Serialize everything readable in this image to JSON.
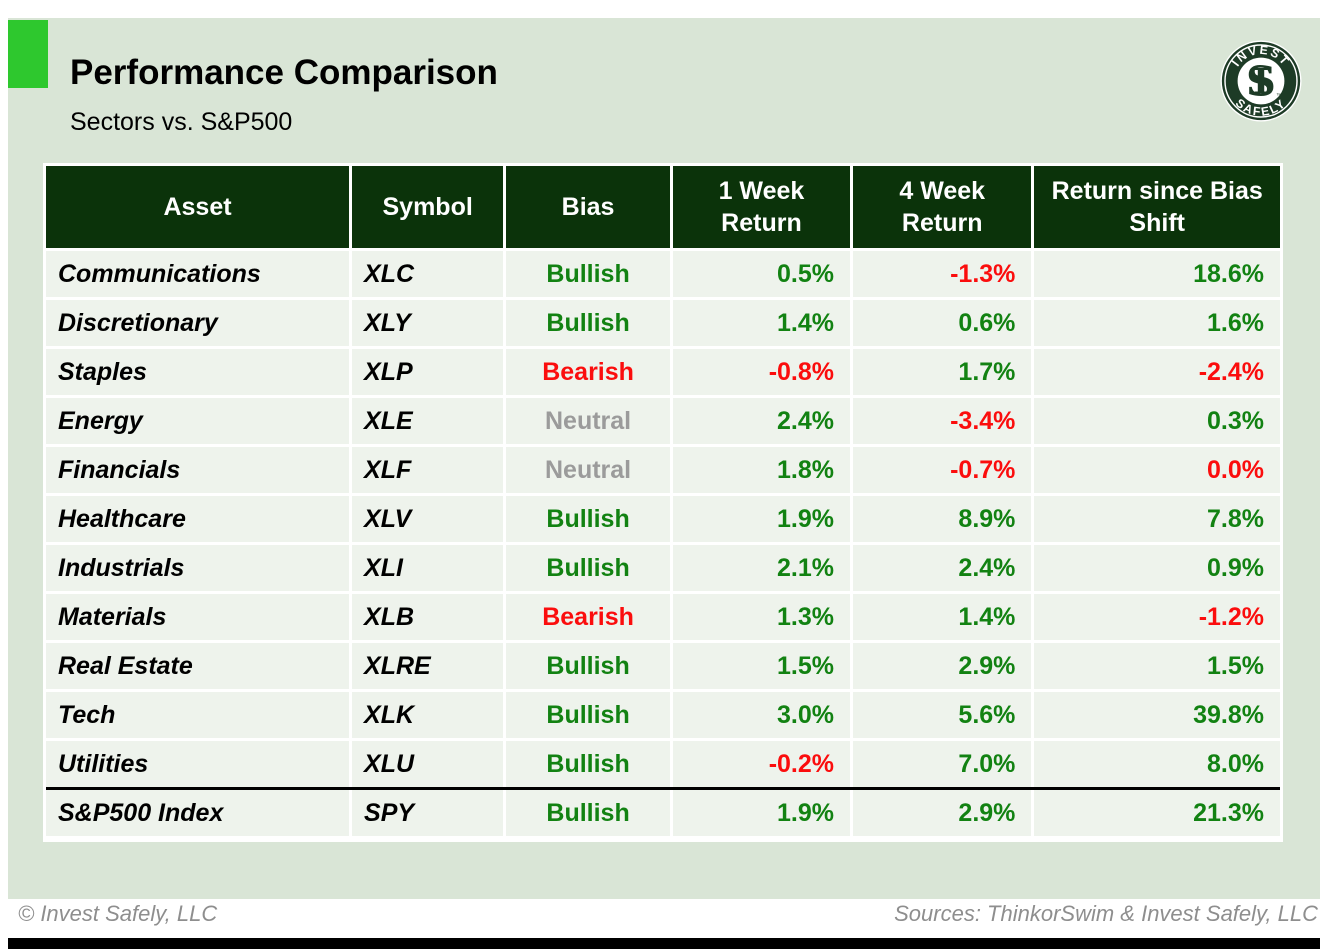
{
  "header": {
    "title": "Performance Comparison",
    "subtitle": "Sectors vs. S&P500"
  },
  "logo": {
    "top_text": "INVEST",
    "bottom_text": "SAFELY",
    "monogram_s": "S",
    "monogram_i": "I",
    "trademark": "™"
  },
  "table": {
    "columns": [
      "Asset",
      "Symbol",
      "Bias",
      "1 Week Return",
      "4 Week Return",
      "Return since Bias Shift"
    ],
    "rows": [
      {
        "asset": "Communications",
        "symbol": "XLC",
        "bias": {
          "text": "Bullish",
          "color": "positive"
        },
        "week1": {
          "text": "0.5%",
          "color": "positive"
        },
        "week4": {
          "text": "-1.3%",
          "color": "negative"
        },
        "since": {
          "text": "18.6%",
          "color": "positive"
        }
      },
      {
        "asset": "Discretionary",
        "symbol": "XLY",
        "bias": {
          "text": "Bullish",
          "color": "positive"
        },
        "week1": {
          "text": "1.4%",
          "color": "positive"
        },
        "week4": {
          "text": "0.6%",
          "color": "positive"
        },
        "since": {
          "text": "1.6%",
          "color": "positive"
        }
      },
      {
        "asset": "Staples",
        "symbol": "XLP",
        "bias": {
          "text": "Bearish",
          "color": "negative"
        },
        "week1": {
          "text": "-0.8%",
          "color": "negative"
        },
        "week4": {
          "text": "1.7%",
          "color": "positive"
        },
        "since": {
          "text": "-2.4%",
          "color": "negative"
        }
      },
      {
        "asset": "Energy",
        "symbol": "XLE",
        "bias": {
          "text": "Neutral",
          "color": "neutral"
        },
        "week1": {
          "text": "2.4%",
          "color": "positive"
        },
        "week4": {
          "text": "-3.4%",
          "color": "negative"
        },
        "since": {
          "text": "0.3%",
          "color": "positive"
        }
      },
      {
        "asset": "Financials",
        "symbol": "XLF",
        "bias": {
          "text": "Neutral",
          "color": "neutral"
        },
        "week1": {
          "text": "1.8%",
          "color": "positive"
        },
        "week4": {
          "text": "-0.7%",
          "color": "negative"
        },
        "since": {
          "text": "0.0%",
          "color": "negative"
        }
      },
      {
        "asset": "Healthcare",
        "symbol": "XLV",
        "bias": {
          "text": "Bullish",
          "color": "positive"
        },
        "week1": {
          "text": "1.9%",
          "color": "positive"
        },
        "week4": {
          "text": "8.9%",
          "color": "positive"
        },
        "since": {
          "text": "7.8%",
          "color": "positive"
        }
      },
      {
        "asset": "Industrials",
        "symbol": "XLI",
        "bias": {
          "text": "Bullish",
          "color": "positive"
        },
        "week1": {
          "text": "2.1%",
          "color": "positive"
        },
        "week4": {
          "text": "2.4%",
          "color": "positive"
        },
        "since": {
          "text": "0.9%",
          "color": "positive"
        }
      },
      {
        "asset": "Materials",
        "symbol": "XLB",
        "bias": {
          "text": "Bearish",
          "color": "negative"
        },
        "week1": {
          "text": "1.3%",
          "color": "positive"
        },
        "week4": {
          "text": "1.4%",
          "color": "positive"
        },
        "since": {
          "text": "-1.2%",
          "color": "negative"
        }
      },
      {
        "asset": "Real Estate",
        "symbol": "XLRE",
        "bias": {
          "text": "Bullish",
          "color": "positive"
        },
        "week1": {
          "text": "1.5%",
          "color": "positive"
        },
        "week4": {
          "text": "2.9%",
          "color": "positive"
        },
        "since": {
          "text": "1.5%",
          "color": "positive"
        }
      },
      {
        "asset": "Tech",
        "symbol": "XLK",
        "bias": {
          "text": "Bullish",
          "color": "positive"
        },
        "week1": {
          "text": "3.0%",
          "color": "positive"
        },
        "week4": {
          "text": "5.6%",
          "color": "positive"
        },
        "since": {
          "text": "39.8%",
          "color": "positive"
        }
      },
      {
        "asset": "Utilities",
        "symbol": "XLU",
        "bias": {
          "text": "Bullish",
          "color": "positive"
        },
        "week1": {
          "text": "-0.2%",
          "color": "negative"
        },
        "week4": {
          "text": "7.0%",
          "color": "positive"
        },
        "since": {
          "text": "8.0%",
          "color": "positive"
        }
      },
      {
        "asset": "S&P500 Index",
        "symbol": "SPY",
        "bias": {
          "text": "Bullish",
          "color": "positive"
        },
        "week1": {
          "text": "1.9%",
          "color": "positive"
        },
        "week4": {
          "text": "2.9%",
          "color": "positive"
        },
        "since": {
          "text": "21.3%",
          "color": "positive"
        },
        "separator_above": true
      }
    ]
  },
  "footer": {
    "left": "© Invest Safely, LLC",
    "right": "Sources: ThinkorSwim & Invest Safely, LLC"
  },
  "colors": {
    "positive": "#128212",
    "negative": "#fb0d0d",
    "neutral": "#9b9b9b",
    "header-bg": "#0b330a",
    "header-text": "#ffffff",
    "slide-bg": "#d9e5d6",
    "row-bg": "#eef3ec",
    "accent": "#2ec82e",
    "logo-green": "#1d3b26",
    "footer-text": "#8e8e8e",
    "text": "#000000",
    "bar": "#000000",
    "cell-border": "#ffffff"
  }
}
